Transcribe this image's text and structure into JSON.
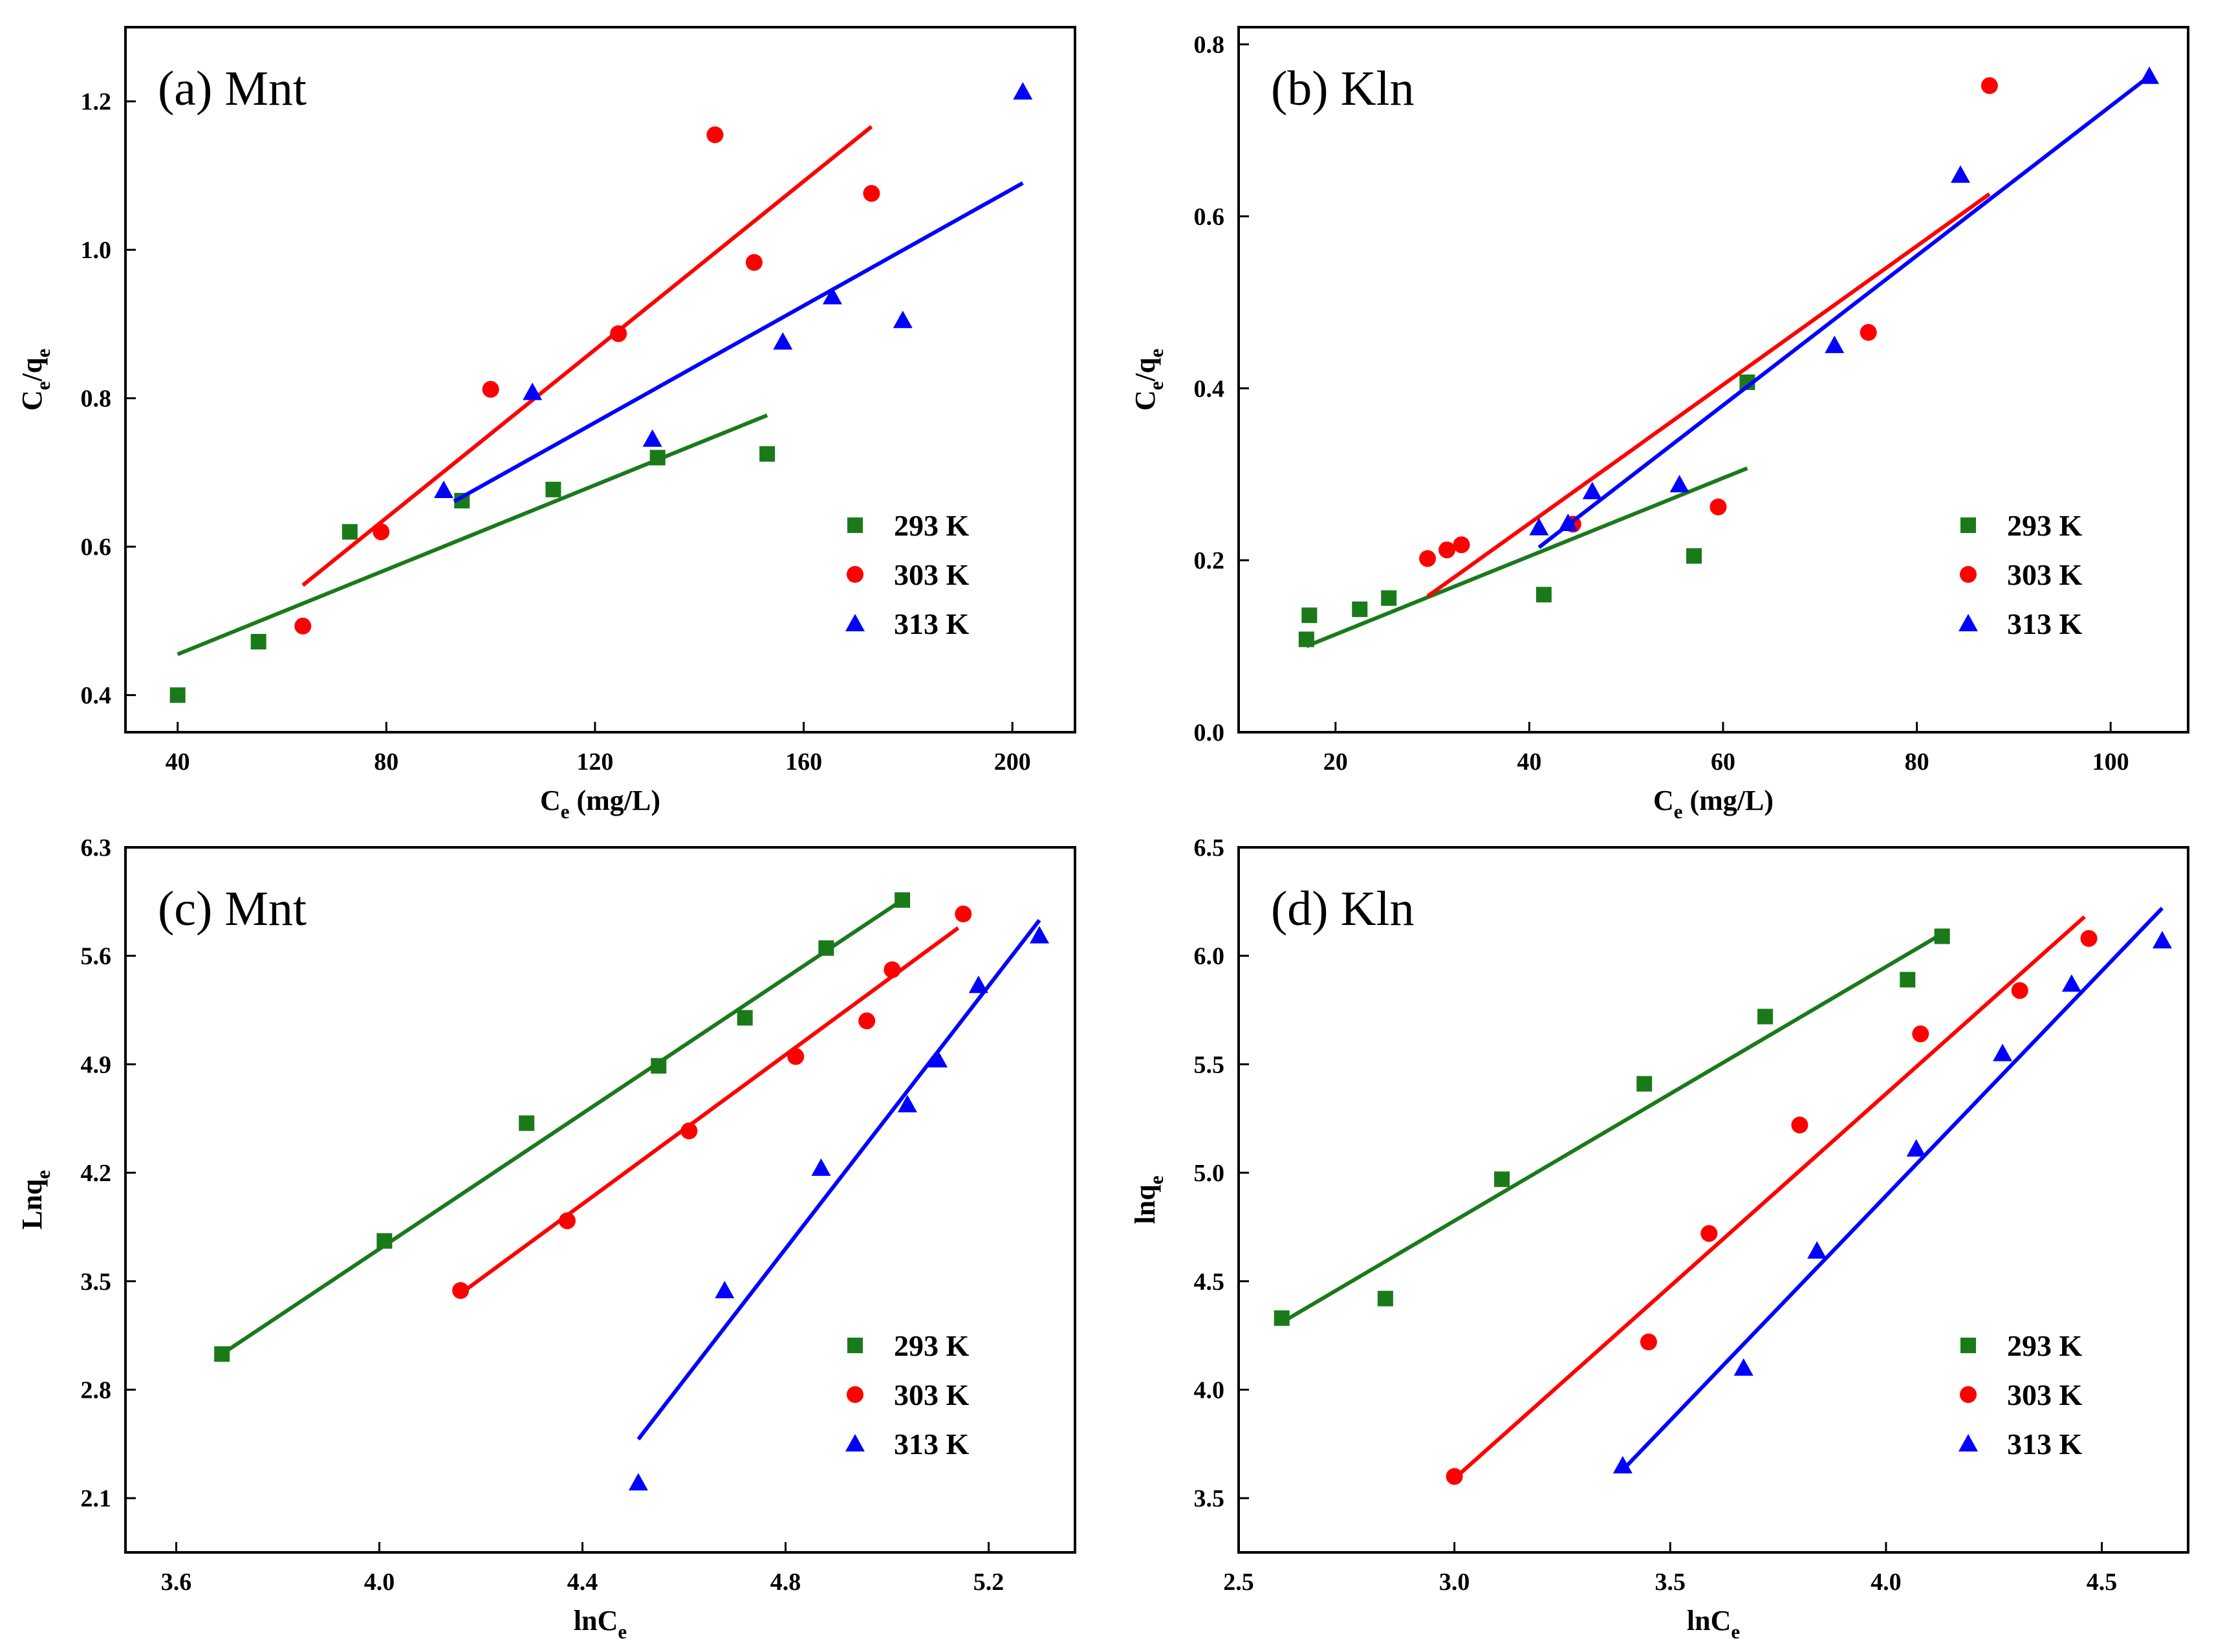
{
  "chart_data": [
    {
      "type": "scatter",
      "title": "(a) Mnt",
      "xlabel": "C_e  (mg/L)",
      "ylabel": "C_e/q_e",
      "xlim": [
        30,
        212
      ],
      "ylim": [
        0.35,
        1.3
      ],
      "xticks": [
        40,
        80,
        120,
        160,
        200
      ],
      "yticks": [
        0.4,
        0.6,
        0.8,
        1.0,
        1.2
      ],
      "tick_decimals": 1,
      "legend_position": "bottom-right",
      "series": [
        {
          "name": "293 K",
          "color": "#1a7a1a",
          "marker": "square",
          "x": [
            40,
            55.5,
            73,
            94.5,
            112,
            132,
            153
          ],
          "y": [
            0.4,
            0.472,
            0.62,
            0.662,
            0.677,
            0.72,
            0.725
          ],
          "fit": [
            [
              40,
              0.455
            ],
            [
              153,
              0.777
            ]
          ]
        },
        {
          "name": "303 K",
          "color": "#ff0000",
          "marker": "circle",
          "x": [
            64,
            79,
            100,
            124.5,
            143,
            150.5,
            173
          ],
          "y": [
            0.493,
            0.62,
            0.812,
            0.887,
            1.155,
            0.983,
            1.076
          ],
          "fit": [
            [
              64,
              0.548
            ],
            [
              173,
              1.166
            ]
          ]
        },
        {
          "name": "313 K",
          "color": "#0000ff",
          "marker": "triangle",
          "x": [
            91,
            108,
            131,
            156,
            165.5,
            179,
            202
          ],
          "y": [
            0.676,
            0.808,
            0.745,
            0.876,
            0.937,
            0.905,
            1.213
          ],
          "fit": [
            [
              93,
              0.661
            ],
            [
              202,
              1.09
            ]
          ]
        }
      ]
    },
    {
      "type": "scatter",
      "title": "(b)  Kln",
      "xlabel": "C_e  (mg/L)",
      "ylabel": "C_e/q_e",
      "xlim": [
        10,
        108
      ],
      "ylim": [
        0,
        0.82
      ],
      "xticks": [
        20,
        40,
        60,
        80,
        100
      ],
      "yticks": [
        0.0,
        0.2,
        0.4,
        0.6,
        0.8
      ],
      "tick_decimals": 1,
      "legend_position": "bottom-right",
      "series": [
        {
          "name": "293 K",
          "color": "#1a7a1a",
          "marker": "square",
          "x": [
            17,
            17.3,
            22.5,
            25.5,
            41.5,
            57,
            62.5
          ],
          "y": [
            0.108,
            0.136,
            0.143,
            0.156,
            0.16,
            0.205,
            0.407
          ],
          "fit": [
            [
              17,
              0.1
            ],
            [
              62.5,
              0.307
            ]
          ]
        },
        {
          "name": "303 K",
          "color": "#ff0000",
          "marker": "circle",
          "x": [
            29.5,
            31.5,
            33,
            44.5,
            59.5,
            75,
            87.5
          ],
          "y": [
            0.202,
            0.212,
            0.218,
            0.242,
            0.262,
            0.465,
            0.752
          ],
          "fit": [
            [
              29.5,
              0.158
            ],
            [
              87.5,
              0.626
            ]
          ]
        },
        {
          "name": "313 K",
          "color": "#0000ff",
          "marker": "triangle",
          "x": [
            41,
            44,
            46.5,
            55.5,
            71.5,
            84.5,
            104
          ],
          "y": [
            0.238,
            0.243,
            0.28,
            0.288,
            0.45,
            0.648,
            0.763
          ],
          "fit": [
            [
              41,
              0.215
            ],
            [
              104,
              0.763
            ]
          ]
        }
      ]
    },
    {
      "type": "scatter",
      "title": "(c) Mnt",
      "xlabel": "lnC_e",
      "ylabel": "Lnq_e",
      "xlim": [
        3.5,
        5.37
      ],
      "ylim": [
        1.75,
        6.3
      ],
      "xticks": [
        3.6,
        4.0,
        4.4,
        4.8,
        5.2
      ],
      "yticks": [
        2.1,
        2.8,
        3.5,
        4.2,
        4.9,
        5.6,
        6.3
      ],
      "tick_decimals": 1,
      "legend_position": "bottom-right",
      "series": [
        {
          "name": "293 K",
          "color": "#1a7a1a",
          "marker": "square",
          "x": [
            3.69,
            4.01,
            4.29,
            4.55,
            4.72,
            4.88,
            5.03
          ],
          "y": [
            3.03,
            3.76,
            4.52,
            4.89,
            5.2,
            5.65,
            5.96
          ],
          "fit": [
            [
              3.69,
              3.03
            ],
            [
              5.03,
              5.96
            ]
          ]
        },
        {
          "name": "303 K",
          "color": "#ff0000",
          "marker": "circle",
          "x": [
            4.16,
            4.37,
            4.61,
            4.82,
            4.96,
            5.01,
            5.15
          ],
          "y": [
            3.44,
            3.89,
            4.47,
            4.95,
            5.18,
            5.51,
            5.87
          ],
          "fit": [
            [
              4.16,
              3.42
            ],
            [
              5.14,
              5.78
            ]
          ]
        },
        {
          "name": "313 K",
          "color": "#0000ff",
          "marker": "triangle",
          "x": [
            4.51,
            4.68,
            4.87,
            5.04,
            5.1,
            5.18,
            5.3
          ],
          "y": [
            2.2,
            3.44,
            4.23,
            4.64,
            4.93,
            5.41,
            5.73
          ],
          "fit": [
            [
              4.51,
              2.48
            ],
            [
              5.3,
              5.83
            ]
          ]
        }
      ]
    },
    {
      "type": "scatter",
      "title": "(d)  Kln",
      "xlabel": "lnC_e",
      "ylabel": "lnq_e",
      "xlim": [
        2.5,
        4.7
      ],
      "ylim": [
        3.25,
        6.5
      ],
      "xticks": [
        2.5,
        3.0,
        3.5,
        4.0,
        4.5
      ],
      "yticks": [
        3.5,
        4.0,
        4.5,
        5.0,
        5.5,
        6.0,
        6.5
      ],
      "tick_decimals": 1,
      "legend_position": "bottom-right",
      "series": [
        {
          "name": "293 K",
          "color": "#1a7a1a",
          "marker": "square",
          "x": [
            2.6,
            2.84,
            3.11,
            3.44,
            3.72,
            4.05,
            4.13
          ],
          "y": [
            4.33,
            4.42,
            4.97,
            5.41,
            5.72,
            5.89,
            6.09
          ],
          "fit": [
            [
              2.6,
              4.31
            ],
            [
              4.12,
              6.09
            ]
          ]
        },
        {
          "name": "303 K",
          "color": "#ff0000",
          "marker": "circle",
          "x": [
            3.0,
            3.45,
            3.59,
            3.8,
            4.08,
            4.31,
            4.47
          ],
          "y": [
            3.6,
            4.22,
            4.72,
            5.22,
            5.64,
            5.84,
            6.08
          ],
          "fit": [
            [
              3.0,
              3.59
            ],
            [
              4.46,
              6.18
            ]
          ]
        },
        {
          "name": "313 K",
          "color": "#0000ff",
          "marker": "triangle",
          "x": [
            3.39,
            3.67,
            3.84,
            4.07,
            4.27,
            4.43,
            4.64
          ],
          "y": [
            3.65,
            4.1,
            4.64,
            5.11,
            5.55,
            5.87,
            6.07
          ],
          "fit": [
            [
              3.39,
              3.63
            ],
            [
              4.64,
              6.22
            ]
          ]
        }
      ]
    }
  ]
}
